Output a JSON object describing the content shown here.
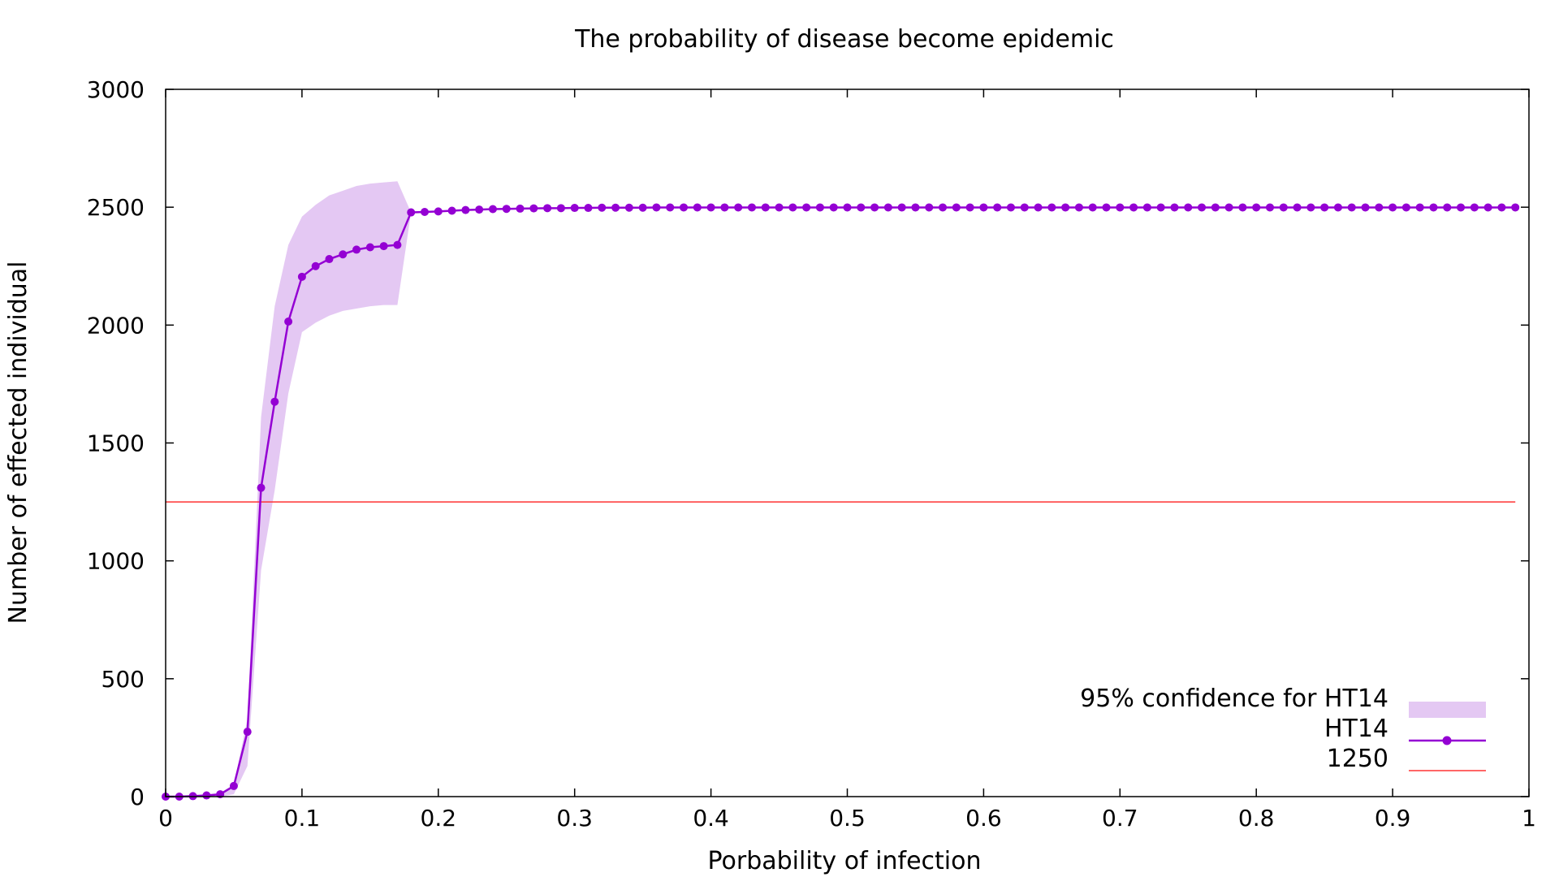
{
  "chart_data": {
    "type": "line",
    "title": "The probability of disease become epidemic",
    "xlabel": "Porbability of infection",
    "ylabel": "Number of effected individual",
    "xlim": [
      0,
      1
    ],
    "ylim": [
      0,
      3000
    ],
    "x_ticks": [
      "0",
      "0.1",
      "0.2",
      "0.3",
      "0.4",
      "0.5",
      "0.6",
      "0.7",
      "0.8",
      "0.9",
      "1"
    ],
    "y_ticks": [
      "0",
      "500",
      "1000",
      "1500",
      "2000",
      "2500",
      "3000"
    ],
    "grid": false,
    "legend_position": "bottom-right",
    "colors": {
      "ht14": "#9400d3",
      "band": "#e4c8f3",
      "threshold": "#ff3333"
    },
    "band": {
      "name": "95% confidence for HT14",
      "x": [
        0,
        0.01,
        0.02,
        0.03,
        0.04,
        0.05,
        0.06,
        0.07,
        0.08,
        0.09,
        0.1,
        0.11,
        0.12,
        0.13,
        0.14,
        0.15,
        0.16,
        0.17,
        0.18
      ],
      "lower": [
        0,
        0,
        0,
        0,
        0,
        10,
        130,
        960,
        1300,
        1710,
        1970,
        2010,
        2040,
        2060,
        2070,
        2080,
        2085,
        2085,
        2478
      ],
      "upper": [
        0,
        0,
        0,
        5,
        10,
        50,
        330,
        1610,
        2080,
        2340,
        2460,
        2510,
        2550,
        2570,
        2590,
        2600,
        2605,
        2610,
        2478
      ]
    },
    "series": [
      {
        "name": "HT14",
        "x": [
          0,
          0.01,
          0.02,
          0.03,
          0.04,
          0.05,
          0.06,
          0.07,
          0.08,
          0.09,
          0.1,
          0.11,
          0.12,
          0.13,
          0.14,
          0.15,
          0.16,
          0.17,
          0.18,
          0.19,
          0.2,
          0.21,
          0.22,
          0.23,
          0.24,
          0.25,
          0.26,
          0.27,
          0.28,
          0.29,
          0.3,
          0.31,
          0.32,
          0.33,
          0.34,
          0.35,
          0.36,
          0.37,
          0.38,
          0.39,
          0.4,
          0.41,
          0.42,
          0.43,
          0.44,
          0.45,
          0.46,
          0.47,
          0.48,
          0.49,
          0.5,
          0.51,
          0.52,
          0.53,
          0.54,
          0.55,
          0.56,
          0.57,
          0.58,
          0.59,
          0.6,
          0.61,
          0.62,
          0.63,
          0.64,
          0.65,
          0.66,
          0.67,
          0.68,
          0.69,
          0.7,
          0.71,
          0.72,
          0.73,
          0.74,
          0.75,
          0.76,
          0.77,
          0.78,
          0.79,
          0.8,
          0.81,
          0.82,
          0.83,
          0.84,
          0.85,
          0.86,
          0.87,
          0.88,
          0.89,
          0.9,
          0.91,
          0.92,
          0.93,
          0.94,
          0.95,
          0.96,
          0.97,
          0.98,
          0.99
        ],
        "values": [
          0,
          0,
          2,
          5,
          10,
          45,
          275,
          1310,
          1675,
          2015,
          2205,
          2250,
          2280,
          2300,
          2320,
          2330,
          2335,
          2340,
          2478,
          2480,
          2482,
          2485,
          2488,
          2490,
          2492,
          2493,
          2494,
          2495,
          2496,
          2496,
          2497,
          2497,
          2498,
          2498,
          2498,
          2498,
          2499,
          2499,
          2499,
          2499,
          2499,
          2499,
          2499,
          2499,
          2499,
          2499,
          2499,
          2499,
          2499,
          2499,
          2499,
          2499,
          2499,
          2499,
          2499,
          2499,
          2499,
          2499,
          2499,
          2499,
          2499,
          2499,
          2499,
          2499,
          2499,
          2499,
          2499,
          2499,
          2499,
          2499,
          2499,
          2499,
          2499,
          2499,
          2499,
          2499,
          2499,
          2499,
          2499,
          2499,
          2499,
          2499,
          2499,
          2499,
          2499,
          2499,
          2499,
          2499,
          2499,
          2499,
          2499,
          2499,
          2499,
          2499,
          2499,
          2499,
          2499,
          2499,
          2499,
          2499
        ]
      },
      {
        "name": "1250",
        "x": [
          0,
          0.99
        ],
        "values": [
          1250,
          1250
        ]
      }
    ]
  }
}
